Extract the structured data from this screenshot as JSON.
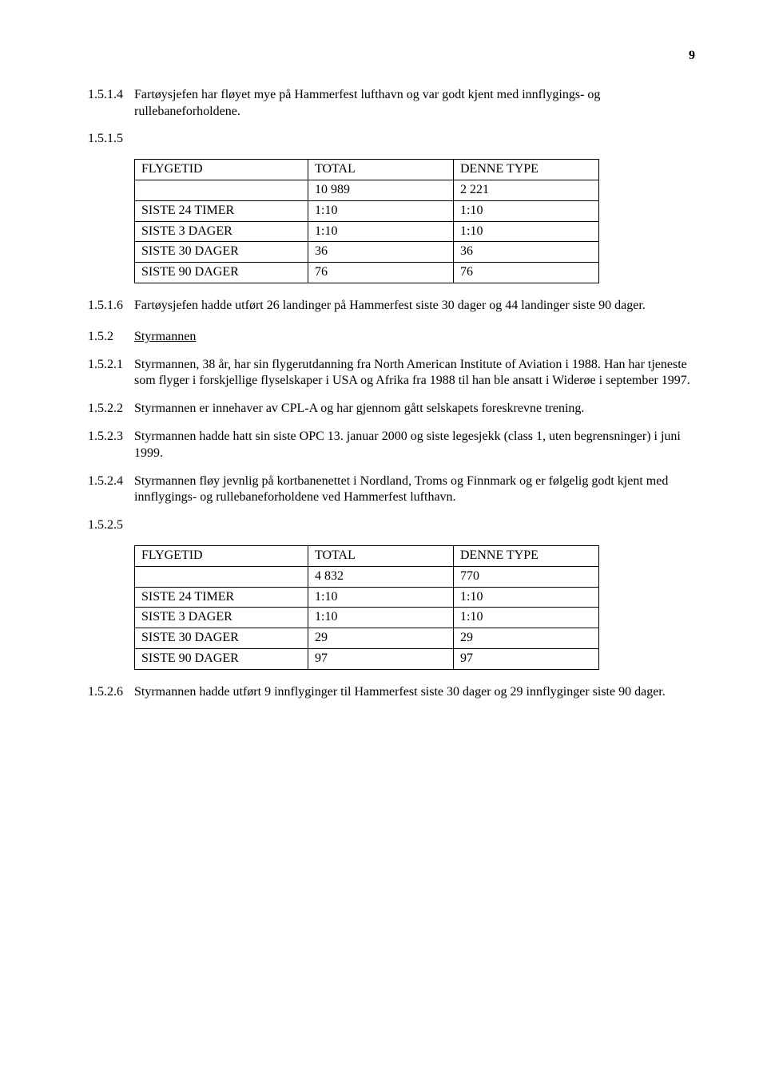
{
  "page_number": "9",
  "sections": {
    "s154": {
      "num": "1.5.1.4",
      "text": "Fartøysjefen har fløyet mye på Hammerfest lufthavn og var godt kjent med innflygings- og rullebaneforholdene."
    },
    "s155": {
      "num": "1.5.1.5"
    },
    "table1": {
      "headers": [
        "FLYGETID",
        "TOTAL",
        "DENNE TYPE"
      ],
      "rows": [
        [
          "",
          "10 989",
          "2 221"
        ],
        [
          "SISTE 24 TIMER",
          "1:10",
          "1:10"
        ],
        [
          "SISTE 3 DAGER",
          "1:10",
          "1:10"
        ],
        [
          "SISTE 30 DAGER",
          "36",
          "36"
        ],
        [
          "SISTE 90 DAGER",
          "76",
          "76"
        ]
      ]
    },
    "s156": {
      "num": "1.5.1.6",
      "text": "Fartøysjefen hadde utført 26 landinger på Hammerfest siste 30 dager og 44 landinger siste 90 dager."
    },
    "heading152": {
      "num": "1.5.2",
      "text": "Styrmannen"
    },
    "s1521": {
      "num": "1.5.2.1",
      "text": "Styrmannen, 38 år, har sin flygerutdanning fra North American Institute of Aviation i 1988. Han har tjeneste som flyger i forskjellige flyselskaper i USA og Afrika fra 1988 til han ble ansatt i Widerøe i september 1997."
    },
    "s1522": {
      "num": "1.5.2.2",
      "text": "Styrmannen er innehaver av CPL-A og har gjennom gått selskapets foreskrevne trening."
    },
    "s1523": {
      "num": "1.5.2.3",
      "text": "Styrmannen hadde hatt sin siste OPC 13. januar 2000 og siste legesjekk (class 1, uten begrensninger) i juni 1999."
    },
    "s1524": {
      "num": "1.5.2.4",
      "text": "Styrmannen fløy jevnlig på kortbanenettet i Nordland, Troms og Finnmark og er følgelig godt kjent med innflygings- og rullebaneforholdene ved Hammerfest lufthavn."
    },
    "s1525": {
      "num": "1.5.2.5"
    },
    "table2": {
      "headers": [
        "FLYGETID",
        "TOTAL",
        "DENNE TYPE"
      ],
      "rows": [
        [
          "",
          "4 832",
          "770"
        ],
        [
          "SISTE 24 TIMER",
          "1:10",
          "1:10"
        ],
        [
          "SISTE 3 DAGER",
          "1:10",
          "1:10"
        ],
        [
          "SISTE 30 DAGER",
          "29",
          "29"
        ],
        [
          "SISTE 90 DAGER",
          "97",
          "97"
        ]
      ]
    },
    "s1526": {
      "num": "1.5.2.6",
      "text": "Styrmannen hadde utført 9 innflyginger til Hammerfest siste 30 dager og 29 innflyginger siste 90 dager."
    }
  }
}
